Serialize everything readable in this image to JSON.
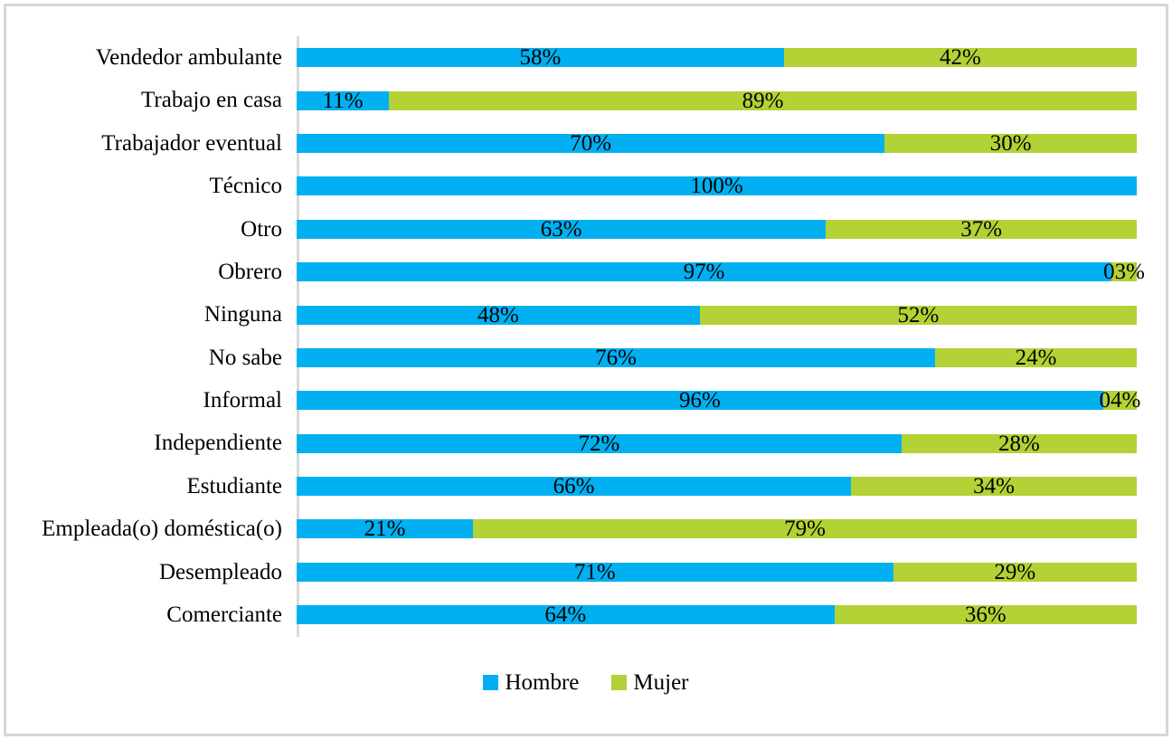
{
  "chart_data": {
    "type": "bar",
    "orientation": "horizontal-stacked",
    "title": "",
    "xlabel": "",
    "ylabel": "",
    "xlim": [
      0,
      100
    ],
    "grid": false,
    "legend_position": "bottom",
    "categories": [
      "Vendedor ambulante",
      "Trabajo en casa",
      "Trabajador eventual",
      "Técnico",
      "Otro",
      "Obrero",
      "Ninguna",
      "No sabe",
      "Informal",
      "Independiente",
      "Estudiante",
      "Empleada(o) doméstica(o)",
      "Desempleado",
      "Comerciante"
    ],
    "series": [
      {
        "name": "Hombre",
        "color": "#00b0f0",
        "values": [
          58,
          11,
          70,
          100,
          63,
          97,
          48,
          76,
          96,
          72,
          66,
          21,
          71,
          64
        ],
        "labels": [
          "58%",
          "11%",
          "70%",
          "100%",
          "63%",
          "97%",
          "48%",
          "76%",
          "96%",
          "72%",
          "66%",
          "21%",
          "71%",
          "64%"
        ]
      },
      {
        "name": "Mujer",
        "color": "#b2d235",
        "values": [
          42,
          89,
          30,
          0,
          37,
          3,
          52,
          24,
          4,
          28,
          34,
          79,
          29,
          36
        ],
        "labels": [
          "42%",
          "89%",
          "30%",
          "",
          "37%",
          "03%",
          "52%",
          "24%",
          "04%",
          "28%",
          "34%",
          "79%",
          "29%",
          "36%"
        ]
      }
    ]
  },
  "legend": {
    "items": [
      {
        "label": "Hombre",
        "color": "#00b0f0"
      },
      {
        "label": "Mujer",
        "color": "#b2d235"
      }
    ]
  },
  "colors": {
    "bar_hombre": "#00b0f0",
    "bar_mujer": "#b2d235",
    "axis_line": "#d9d9d9",
    "outer_frame": "#d7d7d7",
    "text": "#000000",
    "background": "#ffffff"
  }
}
